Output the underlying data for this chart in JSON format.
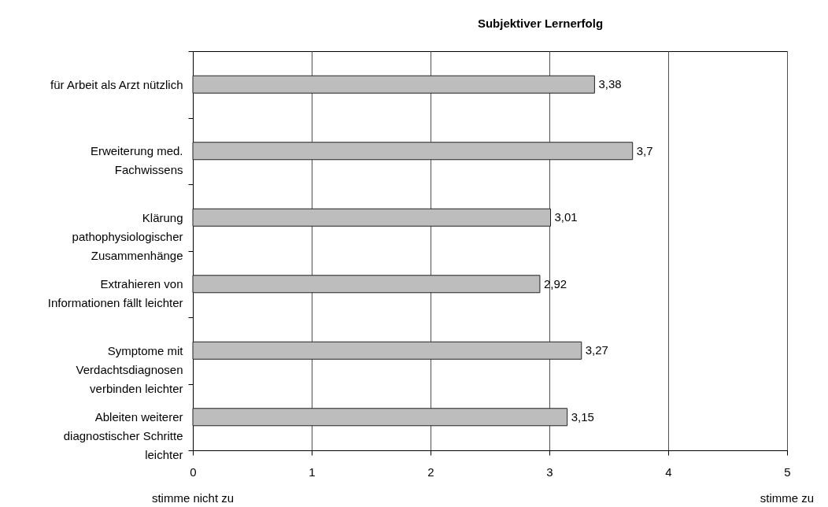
{
  "chart_data": {
    "type": "bar",
    "orientation": "horizontal",
    "title": "Subjektiver Lernerfolg",
    "categories": [
      "für Arbeit als Arzt  nützlich",
      "Erweiterung med.\nFachwissens",
      "Klärung\npathophysiologischer\nZusammenhänge",
      "Extrahieren von\nInformationen fällt leichter",
      "Symptome mit\nVerdachtsdiagnosen\nverbinden leichter",
      "Ableiten weiterer\ndiagnostischer Schritte\nleichter"
    ],
    "values": [
      3.38,
      3.7,
      3.01,
      2.92,
      3.27,
      3.15
    ],
    "value_labels": [
      "3,38",
      "3,7",
      "3,01",
      "2,92",
      "3,27",
      "3,15"
    ],
    "color": "#bdbdbd",
    "xlim": [
      0,
      5
    ],
    "xticks": [
      0,
      1,
      2,
      3,
      4,
      5
    ],
    "grid": "x",
    "annotations": [
      "stimme nicht zu",
      "stimme zu"
    ]
  }
}
